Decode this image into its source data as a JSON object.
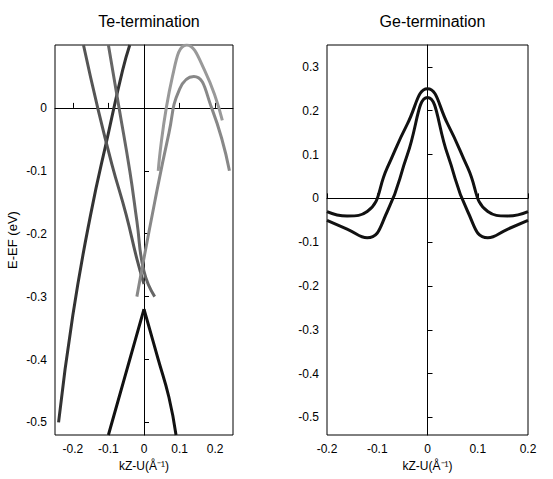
{
  "chart_data": [
    {
      "type": "line",
      "title": "Te-termination",
      "x_label": "kZ-U(Å⁻¹)",
      "y_label": "E-EF (eV)",
      "xlim": [
        -0.25,
        0.25
      ],
      "xticks": [
        -0.2,
        -0.1,
        0,
        0.1,
        0.2
      ],
      "ylim": [
        -0.52,
        0.1
      ],
      "yticks": [
        -0.5,
        -0.4,
        -0.3,
        -0.2,
        -0.1,
        0
      ],
      "grid": false,
      "series": [
        {
          "color": "#111111",
          "x": [
            -0.1,
            -0.07,
            -0.04,
            -0.01,
            0.0
          ],
          "values": [
            -0.52,
            -0.46,
            -0.4,
            -0.34,
            -0.32
          ]
        },
        {
          "color": "#111111",
          "x": [
            0.0,
            0.01,
            0.04,
            0.07,
            0.09
          ],
          "values": [
            -0.32,
            -0.34,
            -0.4,
            -0.46,
            -0.52
          ]
        },
        {
          "color": "#333333",
          "x": [
            -0.24,
            -0.2,
            -0.15,
            -0.1,
            -0.06,
            -0.04
          ],
          "values": [
            -0.5,
            -0.33,
            -0.17,
            -0.04,
            0.06,
            0.1
          ]
        },
        {
          "color": "#555555",
          "x": [
            -0.17,
            -0.13,
            -0.09,
            -0.05,
            -0.02,
            0.0
          ],
          "values": [
            0.1,
            0.0,
            -0.09,
            -0.17,
            -0.24,
            -0.28
          ]
        },
        {
          "color": "#666666",
          "x": [
            -0.1,
            -0.07,
            -0.04,
            -0.02,
            0.0,
            0.03
          ],
          "values": [
            0.1,
            0.0,
            -0.1,
            -0.18,
            -0.26,
            -0.3
          ]
        },
        {
          "color": "#888888",
          "x": [
            -0.02,
            0.03,
            0.07,
            0.1,
            0.14,
            0.19,
            0.24
          ],
          "values": [
            -0.3,
            -0.15,
            -0.04,
            0.03,
            0.05,
            0.0,
            -0.1
          ]
        },
        {
          "color": "#999999",
          "x": [
            0.04,
            0.08,
            0.12,
            0.17,
            0.22
          ],
          "values": [
            -0.1,
            0.05,
            0.1,
            0.06,
            -0.02
          ]
        }
      ]
    },
    {
      "type": "line",
      "title": "Ge-termination",
      "x_label": "kZ-U(Å⁻¹)",
      "xlim": [
        -0.2,
        0.2
      ],
      "xticks": [
        -0.2,
        -0.1,
        0,
        0.1,
        0.2
      ],
      "ylim": [
        -0.54,
        0.35
      ],
      "yticks": [
        -0.5,
        -0.4,
        -0.3,
        -0.2,
        -0.1,
        0,
        0.1,
        0.2,
        0.3
      ],
      "grid": false,
      "series": [
        {
          "color": "#111111",
          "x": [
            -0.2,
            -0.16,
            -0.12,
            -0.08,
            -0.04,
            0.0,
            0.04,
            0.08,
            0.12,
            0.16,
            0.2
          ],
          "values": [
            -0.03,
            -0.04,
            -0.03,
            0.07,
            0.17,
            0.25,
            0.17,
            0.07,
            -0.03,
            -0.04,
            -0.03
          ]
        },
        {
          "color": "#111111",
          "x": [
            -0.2,
            -0.16,
            -0.12,
            -0.08,
            -0.04,
            0.0,
            0.04,
            0.08,
            0.12,
            0.16,
            0.2
          ],
          "values": [
            -0.05,
            -0.07,
            -0.09,
            -0.03,
            0.1,
            0.23,
            0.1,
            -0.03,
            -0.09,
            -0.07,
            -0.05
          ]
        }
      ]
    }
  ]
}
